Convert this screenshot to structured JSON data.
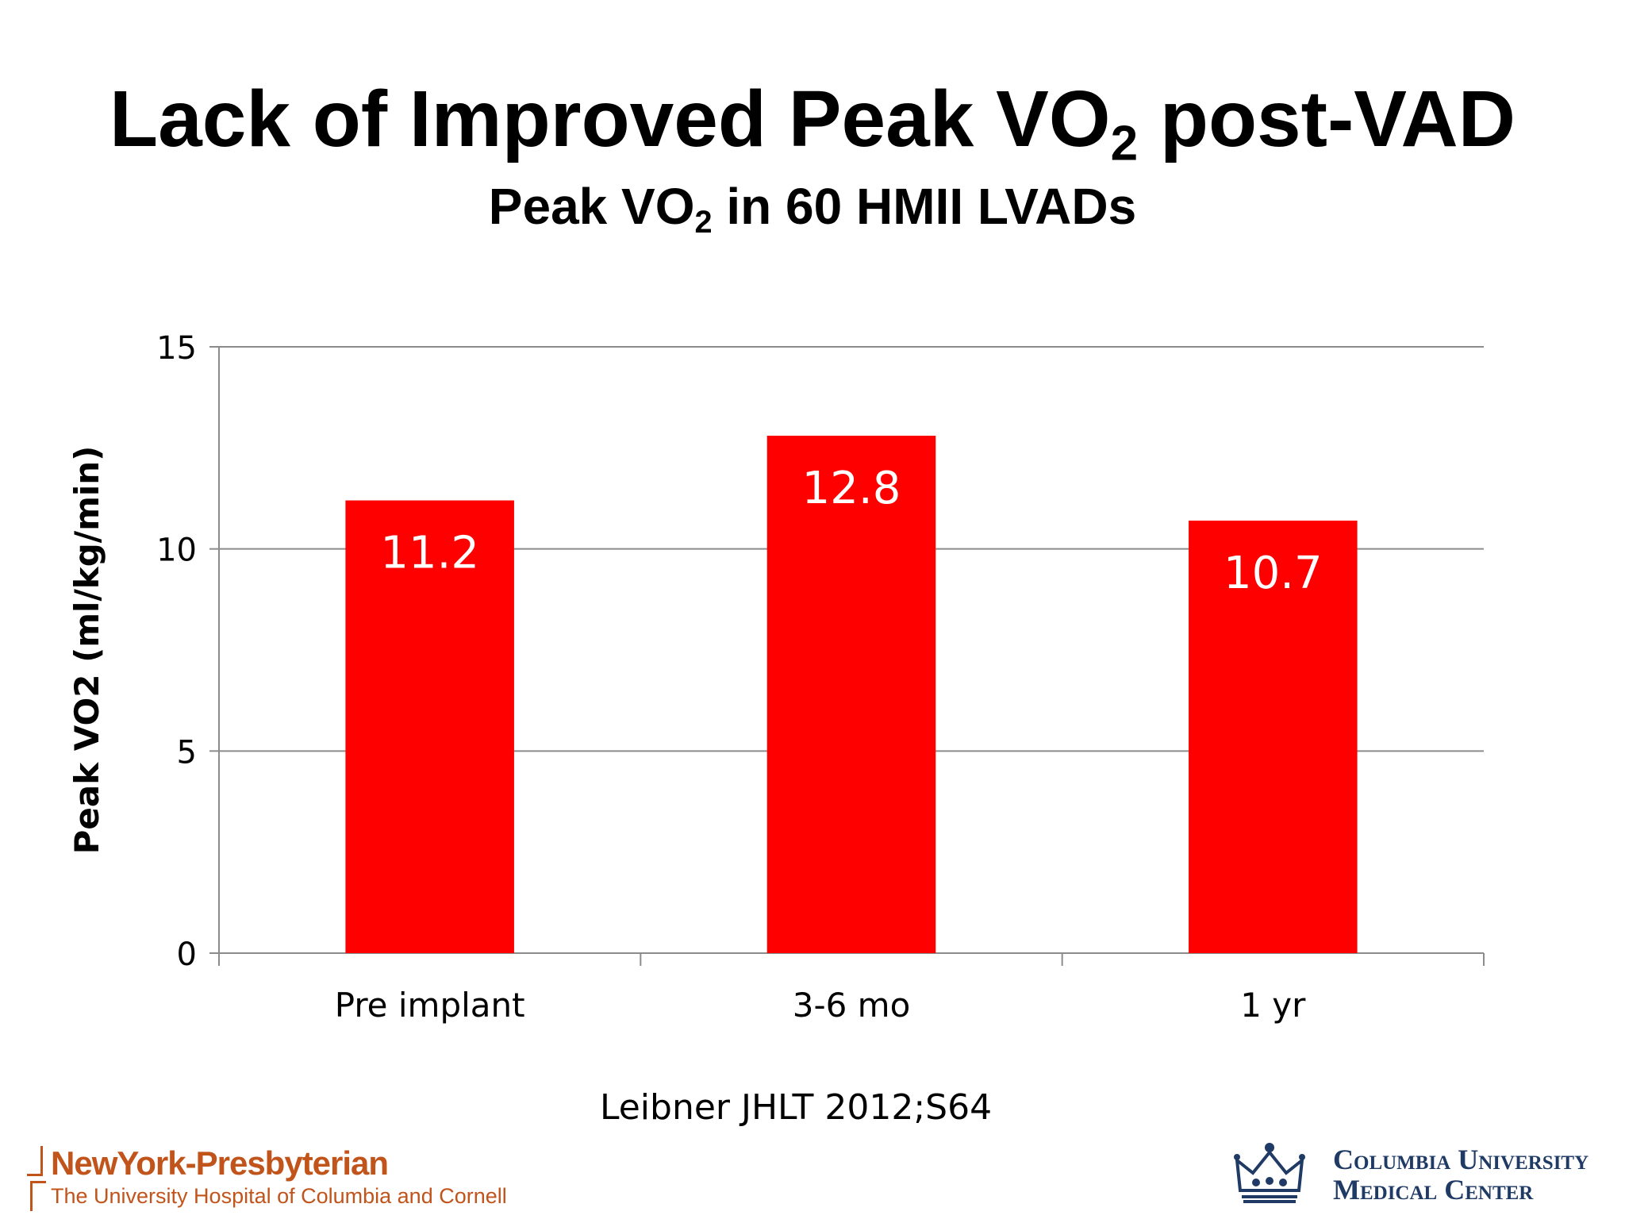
{
  "title": {
    "main": "Lack of Improved Peak VO",
    "main_sub": "2",
    "main_end": " post-VAD"
  },
  "subtitle": {
    "pre": "Peak VO",
    "sub": "2",
    "post": " in 60 HMII LVADs"
  },
  "chart_data": {
    "type": "bar",
    "categories": [
      "Pre implant",
      "3-6 mo",
      "1 yr"
    ],
    "values": [
      11.2,
      12.8,
      10.7
    ],
    "data_labels": [
      "11.2",
      "12.8",
      "10.7"
    ],
    "ylabel": "Peak VO2 (ml/kg/min)",
    "xlabel": "",
    "ylim": [
      0,
      15
    ],
    "yticks": [
      "0",
      "5",
      "10",
      "15"
    ],
    "ytick_values": [
      0,
      5,
      10,
      15
    ],
    "grid": true,
    "bar_color": "#ff0000",
    "label_color": "#ffffff",
    "grid_color": "#8c8c8c"
  },
  "citation": "Leibner JHLT 2012;S64",
  "logos": {
    "nyp_name": "NewYork-Presbyterian",
    "nyp_subtitle": "The University Hospital of Columbia and Cornell",
    "cumc_line1": "Columbia University",
    "cumc_line2": "Medical Center",
    "nyp_color": "#c1541b",
    "cumc_color": "#1f3a64"
  }
}
